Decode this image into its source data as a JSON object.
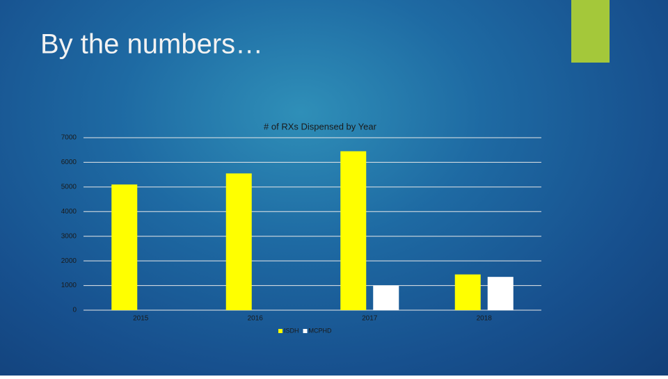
{
  "slide_title": "By the numbers…",
  "chart_data": {
    "type": "bar",
    "title": "# of RXs Dispensed by Year",
    "categories": [
      "2015",
      "2016",
      "2017",
      "2018"
    ],
    "series": [
      {
        "name": "ISDH",
        "color": "#ffff00",
        "values": [
          5100,
          5550,
          6450,
          1450
        ]
      },
      {
        "name": "MCPHD",
        "color": "#ffffff",
        "values": [
          null,
          null,
          1000,
          1350
        ]
      }
    ],
    "ylim": [
      0,
      7000
    ],
    "yticks": [
      0,
      1000,
      2000,
      3000,
      4000,
      5000,
      6000,
      7000
    ],
    "grid": true,
    "legend": "bottom"
  }
}
